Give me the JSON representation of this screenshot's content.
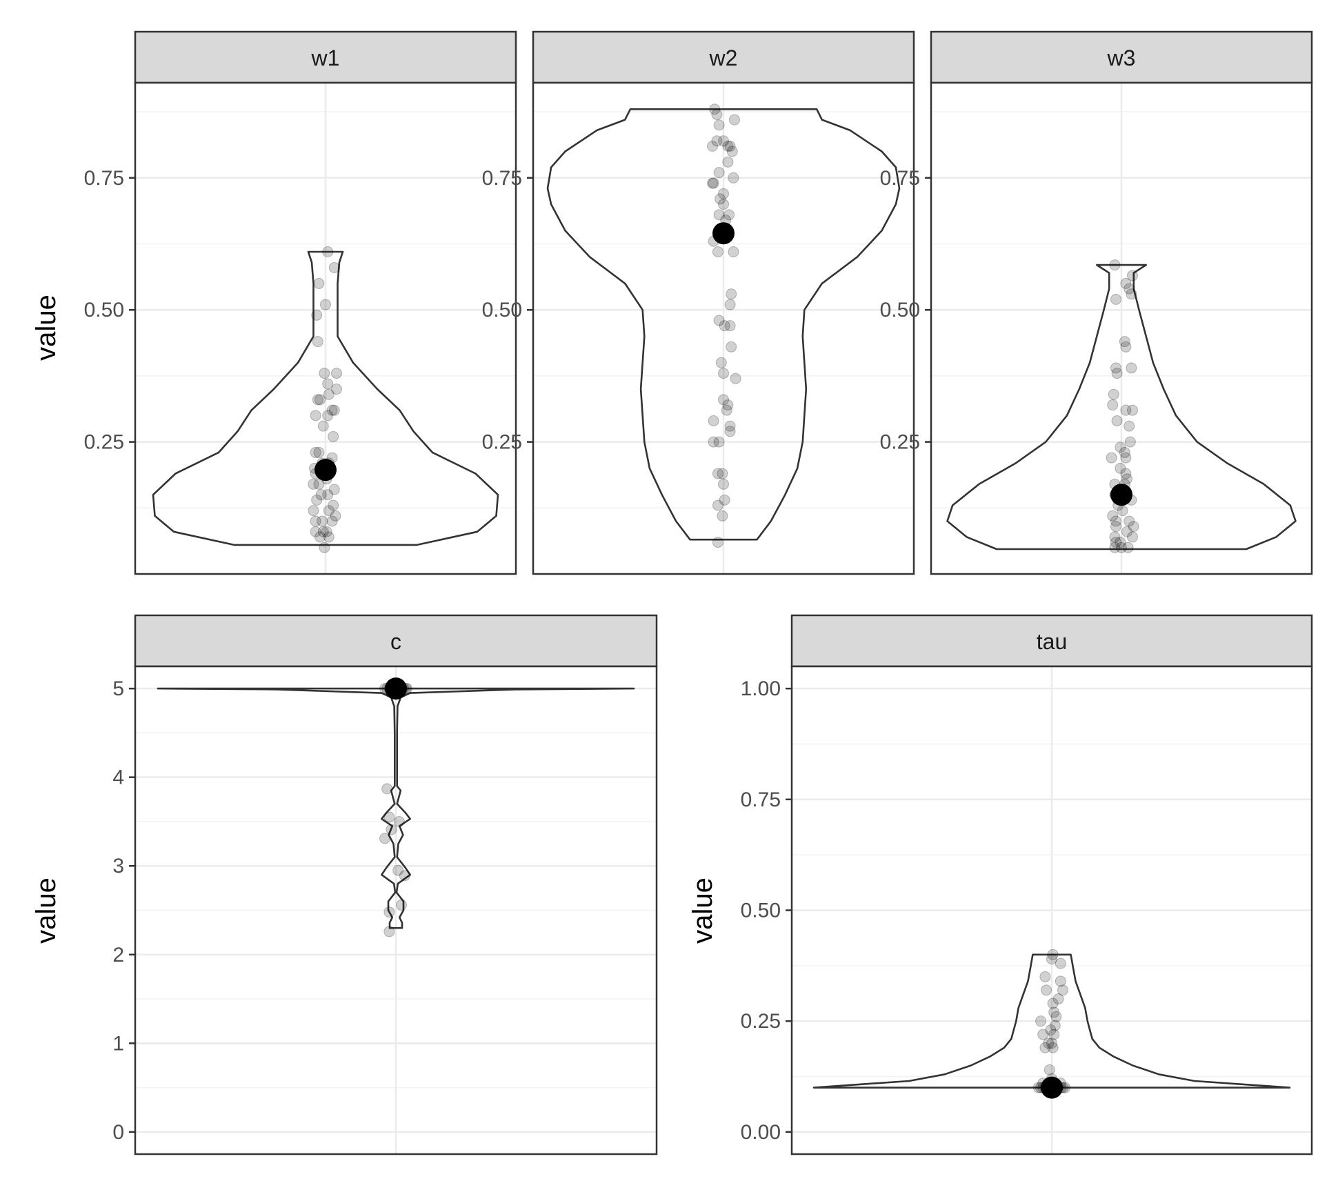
{
  "chart_data": [
    {
      "type": "violin",
      "panel": "w1",
      "ylabel": "value",
      "y_ticks": [
        "0.25",
        "0.50",
        "0.75"
      ],
      "ylim": [
        0,
        0.93
      ],
      "grid": true,
      "summary_point": 0.197,
      "violin_range": [
        0.055,
        0.61
      ],
      "violin_profile": [
        [
          0.055,
          0.53
        ],
        [
          0.08,
          0.88
        ],
        [
          0.11,
          0.99
        ],
        [
          0.15,
          1.0
        ],
        [
          0.19,
          0.87
        ],
        [
          0.23,
          0.62
        ],
        [
          0.27,
          0.51
        ],
        [
          0.31,
          0.43
        ],
        [
          0.35,
          0.3
        ],
        [
          0.4,
          0.16
        ],
        [
          0.45,
          0.07
        ],
        [
          0.5,
          0.07
        ],
        [
          0.55,
          0.07
        ],
        [
          0.59,
          0.08
        ],
        [
          0.61,
          0.1
        ]
      ],
      "points": [
        [
          0.02,
          0.61
        ],
        [
          0.08,
          0.58
        ],
        [
          -0.06,
          0.55
        ],
        [
          0.0,
          0.51
        ],
        [
          -0.08,
          0.49
        ],
        [
          -0.07,
          0.44
        ],
        [
          -0.01,
          0.38
        ],
        [
          0.1,
          0.38
        ],
        [
          0.02,
          0.36
        ],
        [
          0.1,
          0.35
        ],
        [
          0.03,
          0.34
        ],
        [
          -0.07,
          0.33
        ],
        [
          -0.05,
          0.33
        ],
        [
          0.06,
          0.31
        ],
        [
          0.08,
          0.31
        ],
        [
          -0.09,
          0.3
        ],
        [
          0.02,
          0.3
        ],
        [
          -0.02,
          0.28
        ],
        [
          0.07,
          0.26
        ],
        [
          -0.09,
          0.23
        ],
        [
          -0.06,
          0.23
        ],
        [
          0.06,
          0.22
        ],
        [
          -0.03,
          0.21
        ],
        [
          0.03,
          0.21
        ],
        [
          -0.1,
          0.2
        ],
        [
          -0.09,
          0.19
        ],
        [
          0.01,
          0.18
        ],
        [
          -0.11,
          0.17
        ],
        [
          -0.06,
          0.17
        ],
        [
          0.08,
          0.16
        ],
        [
          -0.04,
          0.15
        ],
        [
          0.02,
          0.15
        ],
        [
          -0.08,
          0.14
        ],
        [
          0.07,
          0.13
        ],
        [
          -0.11,
          0.12
        ],
        [
          0.03,
          0.12
        ],
        [
          0.09,
          0.11
        ],
        [
          -0.09,
          0.1
        ],
        [
          -0.03,
          0.1
        ],
        [
          0.06,
          0.1
        ],
        [
          -0.02,
          0.08
        ],
        [
          -0.09,
          0.08
        ],
        [
          0.01,
          0.08
        ],
        [
          0.03,
          0.07
        ],
        [
          -0.05,
          0.07
        ],
        [
          -0.01,
          0.05
        ]
      ]
    },
    {
      "type": "violin",
      "panel": "w2",
      "ylabel": "",
      "y_ticks": [
        "0.25",
        "0.50",
        "0.75"
      ],
      "ylim": [
        0,
        0.93
      ],
      "grid": true,
      "summary_point": 0.645,
      "violin_range": [
        0.065,
        0.88
      ],
      "violin_profile": [
        [
          0.065,
          0.19
        ],
        [
          0.1,
          0.27
        ],
        [
          0.15,
          0.35
        ],
        [
          0.2,
          0.42
        ],
        [
          0.25,
          0.45
        ],
        [
          0.3,
          0.46
        ],
        [
          0.35,
          0.47
        ],
        [
          0.4,
          0.46
        ],
        [
          0.45,
          0.45
        ],
        [
          0.5,
          0.46
        ],
        [
          0.55,
          0.56
        ],
        [
          0.6,
          0.76
        ],
        [
          0.65,
          0.9
        ],
        [
          0.7,
          0.98
        ],
        [
          0.73,
          1.0
        ],
        [
          0.77,
          0.98
        ],
        [
          0.8,
          0.9
        ],
        [
          0.84,
          0.72
        ],
        [
          0.86,
          0.56
        ],
        [
          0.88,
          0.53
        ]
      ],
      "points": [
        [
          -0.08,
          0.88
        ],
        [
          -0.06,
          0.87
        ],
        [
          0.1,
          0.86
        ],
        [
          -0.04,
          0.85
        ],
        [
          -0.06,
          0.82
        ],
        [
          0.0,
          0.82
        ],
        [
          0.06,
          0.81
        ],
        [
          -0.1,
          0.81
        ],
        [
          0.04,
          0.81
        ],
        [
          0.08,
          0.8
        ],
        [
          0.04,
          0.78
        ],
        [
          -0.04,
          0.76
        ],
        [
          0.09,
          0.75
        ],
        [
          -0.1,
          0.74
        ],
        [
          -0.09,
          0.74
        ],
        [
          0.0,
          0.72
        ],
        [
          -0.03,
          0.71
        ],
        [
          0.0,
          0.7
        ],
        [
          0.05,
          0.68
        ],
        [
          -0.04,
          0.68
        ],
        [
          0.02,
          0.67
        ],
        [
          -0.09,
          0.63
        ],
        [
          -0.05,
          0.61
        ],
        [
          0.09,
          0.61
        ],
        [
          0.07,
          0.53
        ],
        [
          0.06,
          0.51
        ],
        [
          -0.04,
          0.48
        ],
        [
          0.06,
          0.47
        ],
        [
          0.01,
          0.47
        ],
        [
          0.07,
          0.43
        ],
        [
          -0.02,
          0.4
        ],
        [
          0.0,
          0.38
        ],
        [
          0.11,
          0.37
        ],
        [
          0.0,
          0.33
        ],
        [
          0.04,
          0.32
        ],
        [
          0.03,
          0.31
        ],
        [
          -0.09,
          0.29
        ],
        [
          0.06,
          0.28
        ],
        [
          0.06,
          0.27
        ],
        [
          -0.09,
          0.25
        ],
        [
          -0.04,
          0.25
        ],
        [
          -0.05,
          0.19
        ],
        [
          -0.01,
          0.19
        ],
        [
          0.0,
          0.17
        ],
        [
          0.01,
          0.14
        ],
        [
          -0.05,
          0.13
        ],
        [
          -0.01,
          0.11
        ],
        [
          -0.05,
          0.06
        ]
      ]
    },
    {
      "type": "violin",
      "panel": "w3",
      "ylabel": "",
      "y_ticks": [
        "0.25",
        "0.50",
        "0.75"
      ],
      "ylim": [
        0,
        0.93
      ],
      "grid": true,
      "summary_point": 0.15,
      "violin_range": [
        0.047,
        0.585
      ],
      "violin_profile": [
        [
          0.047,
          0.71
        ],
        [
          0.07,
          0.88
        ],
        [
          0.1,
          0.99
        ],
        [
          0.13,
          0.96
        ],
        [
          0.17,
          0.81
        ],
        [
          0.21,
          0.6
        ],
        [
          0.25,
          0.43
        ],
        [
          0.3,
          0.31
        ],
        [
          0.35,
          0.24
        ],
        [
          0.4,
          0.18
        ],
        [
          0.45,
          0.14
        ],
        [
          0.5,
          0.1
        ],
        [
          0.54,
          0.07
        ],
        [
          0.57,
          0.07
        ],
        [
          0.585,
          0.14
        ]
      ],
      "points": [
        [
          -0.06,
          0.585
        ],
        [
          0.1,
          0.565
        ],
        [
          0.07,
          0.54
        ],
        [
          0.09,
          0.53
        ],
        [
          0.04,
          0.55
        ],
        [
          -0.05,
          0.52
        ],
        [
          0.03,
          0.44
        ],
        [
          0.04,
          0.43
        ],
        [
          -0.05,
          0.39
        ],
        [
          0.09,
          0.39
        ],
        [
          -0.04,
          0.38
        ],
        [
          -0.07,
          0.34
        ],
        [
          -0.08,
          0.32
        ],
        [
          0.04,
          0.31
        ],
        [
          0.1,
          0.31
        ],
        [
          -0.04,
          0.29
        ],
        [
          0.07,
          0.28
        ],
        [
          0.08,
          0.25
        ],
        [
          -0.01,
          0.24
        ],
        [
          0.03,
          0.23
        ],
        [
          -0.09,
          0.22
        ],
        [
          0.04,
          0.22
        ],
        [
          -0.01,
          0.2
        ],
        [
          0.04,
          0.19
        ],
        [
          0.05,
          0.18
        ],
        [
          -0.06,
          0.17
        ],
        [
          0.03,
          0.17
        ],
        [
          0.01,
          0.16
        ],
        [
          -0.06,
          0.15
        ],
        [
          0.09,
          0.14
        ],
        [
          -0.03,
          0.13
        ],
        [
          0.01,
          0.12
        ],
        [
          -0.08,
          0.11
        ],
        [
          -0.05,
          0.1
        ],
        [
          0.07,
          0.1
        ],
        [
          0.11,
          0.09
        ],
        [
          -0.05,
          0.09
        ],
        [
          0.05,
          0.08
        ],
        [
          -0.06,
          0.07
        ],
        [
          0.1,
          0.07
        ],
        [
          -0.01,
          0.06
        ],
        [
          -0.05,
          0.06
        ],
        [
          0.06,
          0.05
        ],
        [
          0.0,
          0.05
        ],
        [
          -0.06,
          0.05
        ]
      ]
    },
    {
      "type": "violin",
      "panel": "c",
      "ylabel": "value",
      "y_ticks": [
        "0",
        "1",
        "2",
        "3",
        "4",
        "5"
      ],
      "ylim": [
        -0.25,
        5.25
      ],
      "grid": true,
      "summary_point": 5.0,
      "violin_range": [
        2.3,
        5.0
      ],
      "violin_profile": [
        [
          2.3,
          0.026
        ],
        [
          2.36,
          0.026
        ],
        [
          2.42,
          0.015
        ],
        [
          2.5,
          0.032
        ],
        [
          2.6,
          0.032
        ],
        [
          2.7,
          0.003
        ],
        [
          2.8,
          0.008
        ],
        [
          2.9,
          0.06
        ],
        [
          2.98,
          0.04
        ],
        [
          3.1,
          0.005
        ],
        [
          3.25,
          0.01
        ],
        [
          3.35,
          0.03
        ],
        [
          3.45,
          0.015
        ],
        [
          3.53,
          0.06
        ],
        [
          3.6,
          0.04
        ],
        [
          3.7,
          0.005
        ],
        [
          3.85,
          0.02
        ],
        [
          3.9,
          0.005
        ],
        [
          4.1,
          0.005
        ],
        [
          4.5,
          0.005
        ],
        [
          4.8,
          0.007
        ],
        [
          4.9,
          0.02
        ],
        [
          4.95,
          0.06
        ],
        [
          4.99,
          0.5
        ],
        [
          5.0,
          1.0
        ]
      ],
      "points": [
        [
          -0.08,
          3.87
        ],
        [
          -0.06,
          3.55
        ],
        [
          0.03,
          3.5
        ],
        [
          -0.04,
          3.41
        ],
        [
          -0.1,
          3.31
        ],
        [
          0.02,
          2.95
        ],
        [
          0.08,
          2.89
        ],
        [
          0.05,
          2.56
        ],
        [
          -0.06,
          2.48
        ],
        [
          -0.06,
          2.26
        ],
        [
          -0.1,
          5.0
        ],
        [
          -0.08,
          5.0
        ],
        [
          -0.06,
          5.0
        ],
        [
          -0.05,
          5.0
        ],
        [
          -0.03,
          5.0
        ],
        [
          -0.01,
          5.0
        ],
        [
          0.01,
          5.0
        ],
        [
          0.02,
          5.0
        ],
        [
          0.04,
          5.0
        ],
        [
          0.05,
          5.0
        ],
        [
          0.06,
          5.0
        ],
        [
          0.07,
          5.0
        ],
        [
          0.09,
          5.0
        ],
        [
          0.1,
          5.0
        ]
      ]
    },
    {
      "type": "violin",
      "panel": "tau",
      "ylabel": "value",
      "y_ticks": [
        "0.00",
        "0.25",
        "0.50",
        "0.75",
        "1.00"
      ],
      "ylim": [
        -0.05,
        1.05
      ],
      "grid": true,
      "summary_point": 0.1,
      "violin_range": [
        0.1,
        0.4
      ],
      "violin_profile": [
        [
          0.1,
          1.0
        ],
        [
          0.105,
          0.87
        ],
        [
          0.115,
          0.6
        ],
        [
          0.13,
          0.45
        ],
        [
          0.15,
          0.34
        ],
        [
          0.17,
          0.26
        ],
        [
          0.19,
          0.2
        ],
        [
          0.21,
          0.17
        ],
        [
          0.23,
          0.16
        ],
        [
          0.25,
          0.15
        ],
        [
          0.28,
          0.14
        ],
        [
          0.31,
          0.12
        ],
        [
          0.34,
          0.1
        ],
        [
          0.37,
          0.09
        ],
        [
          0.4,
          0.08
        ]
      ],
      "points": [
        [
          0.01,
          0.4
        ],
        [
          0.0,
          0.39
        ],
        [
          0.08,
          0.38
        ],
        [
          -0.06,
          0.35
        ],
        [
          0.08,
          0.34
        ],
        [
          -0.05,
          0.32
        ],
        [
          0.1,
          0.32
        ],
        [
          0.06,
          0.3
        ],
        [
          0.01,
          0.29
        ],
        [
          0.02,
          0.27
        ],
        [
          0.04,
          0.26
        ],
        [
          -0.1,
          0.25
        ],
        [
          0.03,
          0.24
        ],
        [
          -0.01,
          0.23
        ],
        [
          0.02,
          0.22
        ],
        [
          -0.08,
          0.22
        ],
        [
          -0.03,
          0.2
        ],
        [
          0.0,
          0.2
        ],
        [
          0.01,
          0.19
        ],
        [
          -0.06,
          0.19
        ],
        [
          -0.02,
          0.14
        ],
        [
          0.0,
          0.12
        ],
        [
          0.08,
          0.11
        ],
        [
          -0.08,
          0.11
        ],
        [
          -0.12,
          0.1
        ],
        [
          -0.1,
          0.1
        ],
        [
          -0.08,
          0.1
        ],
        [
          -0.06,
          0.1
        ],
        [
          -0.04,
          0.1
        ],
        [
          -0.02,
          0.1
        ],
        [
          0.02,
          0.1
        ],
        [
          0.04,
          0.1
        ],
        [
          0.06,
          0.1
        ],
        [
          0.08,
          0.1
        ],
        [
          0.1,
          0.1
        ],
        [
          0.12,
          0.1
        ]
      ]
    }
  ],
  "colors": {
    "strip_fill": "#d9d9d9",
    "panel_border": "#333333",
    "grid_major": "#ebebeb",
    "grid_minor": "#f2f2f2",
    "violin_line": "#333333",
    "jitter_point": "#000000",
    "summary_point": "#000000"
  }
}
